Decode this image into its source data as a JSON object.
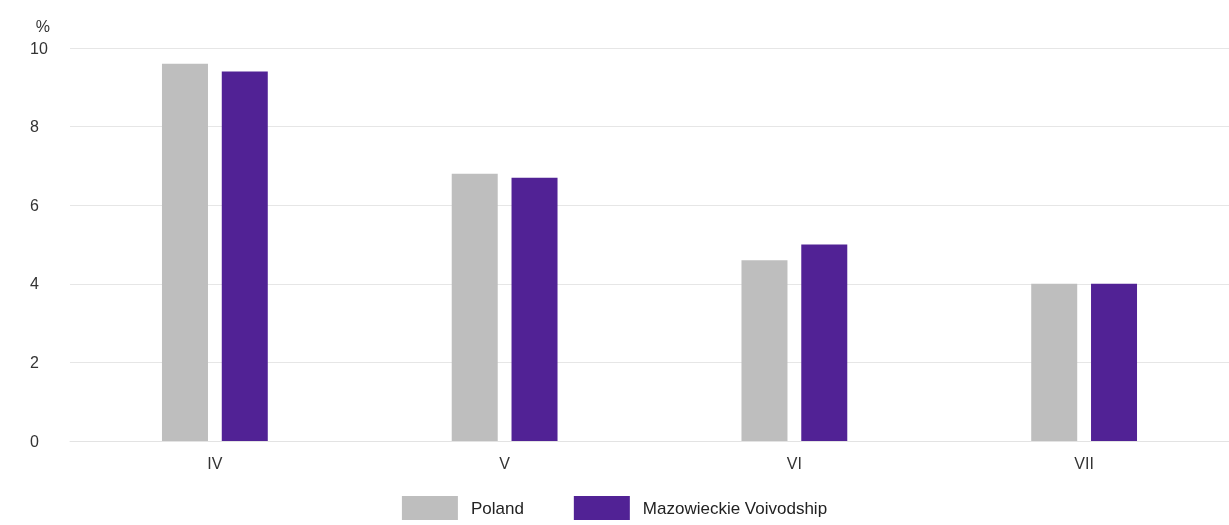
{
  "chart_data": {
    "type": "bar",
    "ylabel": "%",
    "categories": [
      "IV",
      "V",
      "VI",
      "VII"
    ],
    "series": [
      {
        "name": "Poland",
        "color": "#bebebe",
        "values": [
          9.6,
          6.8,
          4.6,
          4.0
        ]
      },
      {
        "name": "Mazowieckie Voivodship",
        "color": "#512295",
        "values": [
          9.4,
          6.7,
          5.0,
          4.0
        ]
      }
    ],
    "ylim": [
      0,
      10
    ],
    "yticks": [
      0,
      2,
      4,
      6,
      8,
      10
    ],
    "grid": "y",
    "legend": "bottom"
  }
}
